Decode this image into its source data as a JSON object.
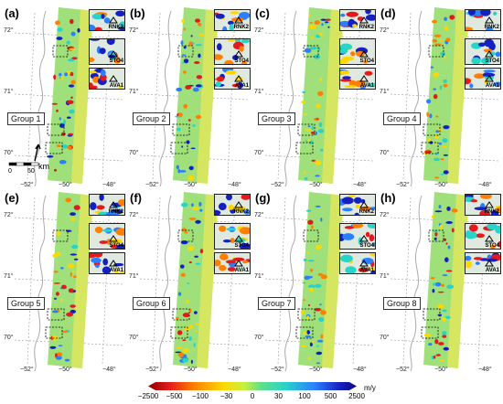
{
  "panels": [
    {
      "letter": "(a)",
      "group": "Group 1"
    },
    {
      "letter": "(b)",
      "group": "Group 2"
    },
    {
      "letter": "(c)",
      "group": "Group 3"
    },
    {
      "letter": "(d)",
      "group": "Group 4"
    },
    {
      "letter": "(e)",
      "group": "Group 5"
    },
    {
      "letter": "(f)",
      "group": "Group 6"
    },
    {
      "letter": "(g)",
      "group": "Group 7"
    },
    {
      "letter": "(h)",
      "group": "Group 8"
    }
  ],
  "latitude_labels": [
    "72°",
    "71°",
    "70°"
  ],
  "longitude_labels": [
    "−52°",
    "−50°",
    "−48°"
  ],
  "inset_labels": [
    "RNK2",
    "STO4",
    "AVA1"
  ],
  "scale_bar": {
    "ticks": [
      "0",
      "50"
    ],
    "unit": "km"
  },
  "colorbar": {
    "ticks": [
      "−2500",
      "−500",
      "−100",
      "−30",
      "0",
      "30",
      "100",
      "500",
      "2500"
    ],
    "unit": "m/y"
  },
  "colors": {
    "negative": "#e31a1c",
    "neutral": "#5fe08a",
    "positive": "#1520c0",
    "mid": "#ffd700"
  }
}
